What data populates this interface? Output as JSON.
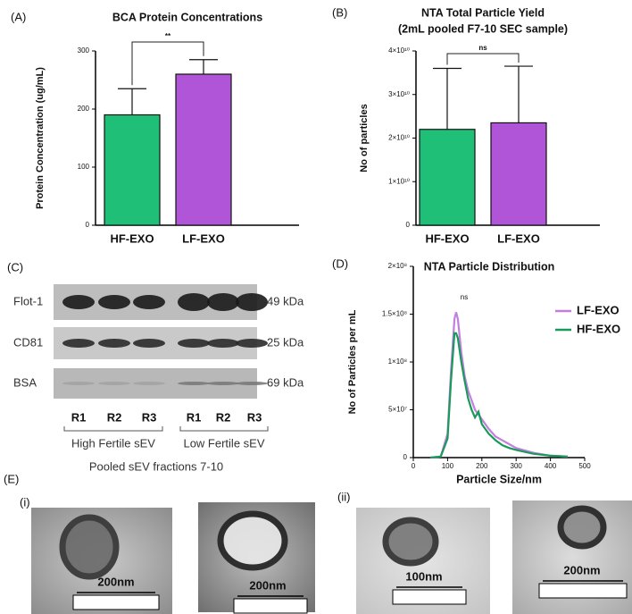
{
  "chart_data": [
    {
      "type": "bar",
      "panel_label": "(A)",
      "title": "BCA Protein Concentrations",
      "ylabel": "Protein Concentration (ug/mL)",
      "categories": [
        "HF-EXO",
        "LF-EXO"
      ],
      "values": [
        190,
        260
      ],
      "errors": [
        45,
        25
      ],
      "colors": [
        "#1fbf77",
        "#b054d8"
      ],
      "ylim": [
        0,
        300
      ],
      "yticks": [
        0,
        100,
        200,
        300
      ],
      "annotation": "**"
    },
    {
      "type": "bar",
      "panel_label": "(B)",
      "title": [
        "NTA Total Particle Yield",
        "(2mL pooled F7-10 SEC sample)"
      ],
      "ylabel": "No of particles",
      "categories": [
        "HF-EXO",
        "LF-EXO"
      ],
      "values": [
        22000000000.0,
        23500000000.0
      ],
      "errors": [
        14000000000.0,
        13000000000.0
      ],
      "colors": [
        "#1fbf77",
        "#b054d8"
      ],
      "ylim": [
        0,
        40000000000.0
      ],
      "yticks": [
        0,
        {
          "value": 10000000000.0,
          "label": "1×10¹⁰"
        },
        {
          "value": 20000000000.0,
          "label": "2×10¹⁰"
        },
        {
          "value": 30000000000.0,
          "label": "3×10¹⁰"
        },
        {
          "value": 40000000000.0,
          "label": "4×10¹⁰"
        }
      ],
      "annotation": "ns"
    },
    {
      "type": "line",
      "panel_label": "(D)",
      "title": "NTA Particle Distribution",
      "xlabel": "Particle Size/nm",
      "ylabel": "No of Particles per mL",
      "annotation": "ns",
      "x": [
        50,
        80,
        100,
        110,
        120,
        125,
        130,
        140,
        150,
        160,
        170,
        180,
        190,
        200,
        220,
        240,
        260,
        280,
        300,
        350,
        400,
        450
      ],
      "series": [
        {
          "name": "LF-EXO",
          "color": "#c27fe0",
          "values": [
            0,
            1000000,
            25000000,
            90000000,
            145000000,
            152000000,
            145000000,
            110000000,
            85000000,
            70000000,
            60000000,
            50000000,
            45000000,
            40000000,
            30000000,
            22000000,
            18000000,
            14000000,
            10000000,
            5000000,
            2000000,
            1000000
          ]
        },
        {
          "name": "HF-EXO",
          "color": "#1a9a5a",
          "values": [
            0,
            1000000,
            20000000,
            80000000,
            130000000,
            130000000,
            125000000,
            100000000,
            80000000,
            62000000,
            50000000,
            42000000,
            48000000,
            35000000,
            25000000,
            18000000,
            13000000,
            10000000,
            8000000,
            4000000,
            2000000,
            1000000
          ]
        }
      ],
      "xlim": [
        0,
        500
      ],
      "xticks": [
        0,
        100,
        200,
        300,
        400,
        500
      ],
      "ylim": [
        0,
        200000000.0
      ],
      "yticks": [
        0,
        {
          "value": 50000000.0,
          "label": "5×10⁷"
        },
        {
          "value": 100000000.0,
          "label": "1×10⁸"
        },
        {
          "value": 150000000.0,
          "label": "1.5×10⁸"
        },
        {
          "value": 200000000.0,
          "label": "2×10⁸"
        }
      ]
    }
  ],
  "blot": {
    "panel_label": "(C)",
    "rows": [
      {
        "label": "Flot-1",
        "size": "49 kDa"
      },
      {
        "label": "CD81",
        "size": "25 kDa"
      },
      {
        "label": "BSA",
        "size": "69 kDa"
      }
    ],
    "lanes": [
      "R1",
      "R2",
      "R3",
      "R1",
      "R2",
      "R3"
    ],
    "groups": [
      "High Fertile sEV",
      "Low Fertile sEV"
    ],
    "caption": "Pooled sEV fractions 7-10"
  },
  "tem": {
    "panel_label": "(E)",
    "sets": [
      "(i)",
      "(ii)"
    ],
    "scale_labels": [
      "200nm",
      "200nm",
      "100nm",
      "200nm"
    ]
  }
}
